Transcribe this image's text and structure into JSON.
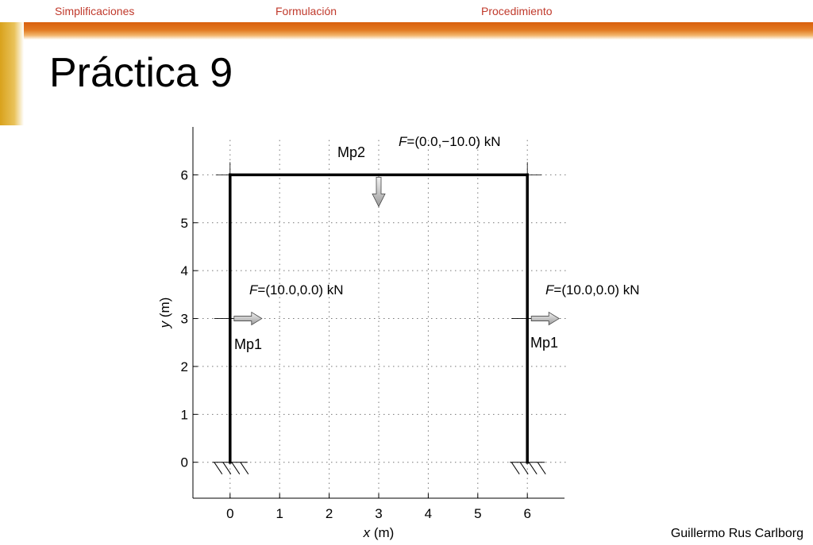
{
  "nav": {
    "items": [
      {
        "label": "Simplificaciones"
      },
      {
        "label": "Formulación"
      },
      {
        "label": "Procedimiento"
      }
    ],
    "link_color": "#c0392b"
  },
  "slide": {
    "title": "Práctica 9",
    "author": "Guillermo Rus Carlborg",
    "bar_color": "#d95f0c",
    "side_color": "#d9a21c"
  },
  "chart_data": {
    "type": "diagram",
    "xlabel_var": "x",
    "xlabel_unit": " (m)",
    "ylabel_var": "y",
    "ylabel_unit": " (m)",
    "xlim": [
      -0.75,
      6.75
    ],
    "ylim": [
      -0.75,
      7.0
    ],
    "x_ticks": [
      0,
      1,
      2,
      3,
      4,
      5,
      6
    ],
    "y_ticks": [
      0,
      1,
      2,
      3,
      4,
      5,
      6
    ],
    "grid": true,
    "frame": {
      "members": [
        {
          "from": [
            0,
            0
          ],
          "to": [
            0,
            6
          ]
        },
        {
          "from": [
            0,
            6
          ],
          "to": [
            6,
            6
          ]
        },
        {
          "from": [
            6,
            6
          ],
          "to": [
            6,
            0
          ]
        }
      ],
      "supports": [
        [
          0,
          0
        ],
        [
          6,
          0
        ]
      ]
    },
    "loads": [
      {
        "at": [
          0,
          3
        ],
        "dir": "right",
        "label_var": "F",
        "label_rest": "=(10.0,0.0) kN"
      },
      {
        "at": [
          6,
          3
        ],
        "dir": "right",
        "label_var": "F",
        "label_rest": "=(10.0,0.0) kN"
      },
      {
        "at": [
          3,
          6
        ],
        "dir": "down",
        "label_var": "F",
        "label_rest": "=(0.0,−10.0) kN"
      }
    ],
    "member_labels": [
      {
        "text": "Mp1",
        "near": "left-column"
      },
      {
        "text": "Mp1",
        "near": "right-column"
      },
      {
        "text": "Mp2",
        "near": "beam"
      }
    ]
  }
}
